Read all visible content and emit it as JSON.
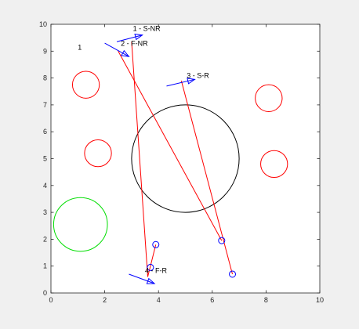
{
  "chart_data": {
    "type": "scatter",
    "xlim": [
      0,
      10
    ],
    "ylim": [
      0,
      10
    ],
    "xticks": [
      0,
      2,
      4,
      6,
      8,
      10
    ],
    "yticks": [
      0,
      1,
      2,
      3,
      4,
      5,
      6,
      7,
      8,
      9,
      10
    ],
    "grid": false,
    "colors": {
      "red": "#ff0000",
      "blue": "#0000ff",
      "green": "#00dd00",
      "black": "#000000"
    },
    "black_circles": [
      {
        "cx": 5.0,
        "cy": 5.0,
        "r": 2.0
      }
    ],
    "red_circles": [
      {
        "cx": 1.3,
        "cy": 7.75,
        "r": 0.5
      },
      {
        "cx": 1.75,
        "cy": 5.2,
        "r": 0.5
      },
      {
        "cx": 8.1,
        "cy": 7.25,
        "r": 0.5
      },
      {
        "cx": 8.3,
        "cy": 4.8,
        "r": 0.5
      }
    ],
    "green_circles": [
      {
        "cx": 1.1,
        "cy": 2.55,
        "r": 1.0
      }
    ],
    "red_paths": [
      [
        [
          3.0,
          9.35
        ],
        [
          3.6,
          0.6
        ],
        [
          3.9,
          1.8
        ]
      ],
      [
        [
          2.5,
          9.0
        ],
        [
          6.35,
          1.95
        ]
      ],
      [
        [
          4.85,
          7.9
        ],
        [
          6.75,
          0.7
        ]
      ]
    ],
    "blue_markers": [
      {
        "x": 3.9,
        "y": 1.8
      },
      {
        "x": 3.7,
        "y": 0.95
      },
      {
        "x": 6.35,
        "y": 1.95
      },
      {
        "x": 6.75,
        "y": 0.7
      }
    ],
    "blue_arrows": [
      {
        "from": [
          2.45,
          9.35
        ],
        "to": [
          3.4,
          9.6
        ]
      },
      {
        "from": [
          2.0,
          9.3
        ],
        "to": [
          2.9,
          8.8
        ]
      },
      {
        "from": [
          4.3,
          7.7
        ],
        "to": [
          5.35,
          7.95
        ]
      },
      {
        "from": [
          2.9,
          0.7
        ],
        "to": [
          3.85,
          0.35
        ]
      }
    ],
    "annotations": [
      {
        "text": "1 - S-NR",
        "x": 3.05,
        "y": 9.75
      },
      {
        "text": "2 - F-NR",
        "x": 2.6,
        "y": 9.2
      },
      {
        "text": "3 - S-R",
        "x": 5.05,
        "y": 8.0
      },
      {
        "text": "4 - F-R",
        "x": 3.5,
        "y": 0.75
      },
      {
        "text": "1",
        "x": 1.0,
        "y": 9.05
      }
    ]
  }
}
